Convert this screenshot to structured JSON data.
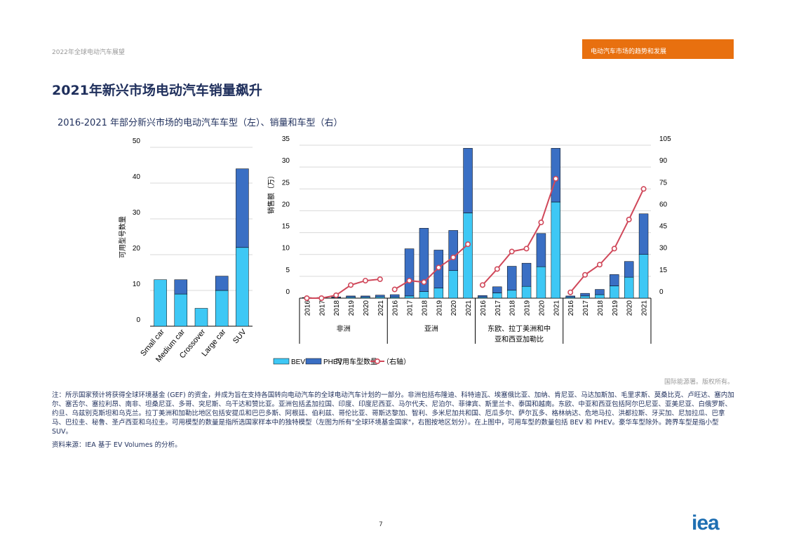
{
  "header": {
    "report_title": "2022年全球电动汽车展望",
    "section_tab": "电动汽车市场的趋势和发展"
  },
  "page_title": "2021年新兴市场电动汽车销量飙升",
  "figure_title": "2016-2021 年部分新兴市场的电动汽车车型（左）、销量和车型（右）",
  "credit": "国际能源署。版权所有。",
  "note": "注：所示国家预计将获得全球环境基金 (GEF) 的资金，并成为旨在支持各国转向电动汽车的全球电动汽车计划的一部分。非洲包括布隆迪、科特迪瓦、埃塞俄比亚、加纳、肯尼亚、马达加斯加、毛里求斯、莫桑比克、卢旺达、塞内加尔、塞舌尔、塞拉利昂、南非、坦桑尼亚、多哥、突尼斯、乌干达和赞比亚。亚洲包括孟加拉国、印度、印度尼西亚、马尔代夫、尼泊尔、菲律宾、斯里兰卡、泰国和越南。东欧、中亚和西亚包括阿尔巴尼亚、亚美尼亚、白俄罗斯、约旦、乌兹别克斯坦和乌克兰。拉丁美洲和加勒比地区包括安提瓜和巴巴多斯、阿根廷、伯利兹、哥伦比亚、哥斯达黎加、智利、多米尼加共和国、厄瓜多尔、萨尔瓦多、格林纳达、危地马拉、洪都拉斯、牙买加、尼加拉瓜、巴拿马、巴拉圭、秘鲁、圣卢西亚和乌拉圭。可用模型的数量是指所选国家样本中的独特模型（左图为所有\"全球环境基金国家\"，右图按地区划分）。在上图中，可用车型的数量包括 BEV 和 PHEV。豪华车型除外。跨界车型是指小型SUV。",
  "source": "资料来源：IEA 基于 EV Volumes 的分析。",
  "page_number": "7",
  "logo_text": "iea",
  "chart_data": [
    {
      "type": "bar",
      "stacked": true,
      "categories": [
        "Small car",
        "Medium car",
        "Crossover",
        "Large car",
        "SUV"
      ],
      "series": [
        {
          "name": "BEV",
          "color": "#3ec8f5",
          "values": [
            13,
            9,
            5,
            10,
            22
          ]
        },
        {
          "name": "PHEV",
          "color": "#3a6fc4",
          "values": [
            0,
            4,
            0,
            4,
            22
          ]
        }
      ],
      "ylabel": "可用型号数量",
      "ylim": [
        0,
        50
      ],
      "yticks": [
        "0",
        "10",
        "20",
        "30",
        "40",
        "50"
      ],
      "grid": true
    },
    {
      "type": "bar+line",
      "stacked": true,
      "ylabel": "销售额（万）",
      "ylim": [
        0,
        35
      ],
      "yticks": [
        "0",
        "5",
        "10",
        "15",
        "20",
        "25",
        "30",
        "35"
      ],
      "y2lim": [
        0,
        105
      ],
      "y2ticks": [
        "0",
        "15",
        "30",
        "45",
        "60",
        "75",
        "90",
        "105"
      ],
      "grid": true,
      "legend_position": "bottom",
      "legend": {
        "bev": "BEV",
        "phev": "PHEV",
        "models": "可用车型数量",
        "axis_note": "（右轴）"
      },
      "groups": [
        {
          "label": "非洲",
          "years": [
            "2016",
            "2017",
            "2018",
            "2019",
            "2020",
            "2021"
          ],
          "bev": [
            0.05,
            0.05,
            0.1,
            0.2,
            0.2,
            0.3
          ],
          "phev": [
            0.1,
            0.1,
            0.2,
            0.3,
            0.3,
            0.4
          ],
          "models": [
            0,
            0,
            2,
            9,
            12,
            13
          ]
        },
        {
          "label": "亚洲",
          "years": [
            "2016",
            "2017",
            "2018",
            "2019",
            "2020",
            "2021"
          ],
          "bev": [
            0.2,
            0.5,
            1.5,
            2.3,
            6.3,
            19.5
          ],
          "phev": [
            0.6,
            10.8,
            14.5,
            8.7,
            9.2,
            14.8
          ],
          "models": [
            6,
            12,
            11,
            21,
            28,
            37
          ]
        },
        {
          "label": "东欧、拉丁美洲和中亚和西亚加勒比",
          "years": [
            "2016",
            "2017",
            "2018",
            "2019",
            "2020",
            "2021"
          ],
          "bev": [
            0.2,
            1.2,
            1.8,
            2.7,
            7.2,
            22.0
          ],
          "phev": [
            0.4,
            1.4,
            5.5,
            5.3,
            7.6,
            12.3
          ],
          "models": [
            9,
            20,
            32,
            34,
            52,
            82
          ]
        },
        {
          "label": "",
          "years": [
            "2016",
            "2017",
            "2018",
            "2019",
            "2020",
            "2021"
          ],
          "bev": [
            0.2,
            0.5,
            0.8,
            2.8,
            4.8,
            10.0
          ],
          "phev": [
            0.3,
            0.6,
            1.2,
            2.6,
            3.6,
            9.3
          ],
          "models": [
            4,
            16,
            23,
            34,
            54,
            75
          ]
        }
      ]
    }
  ]
}
